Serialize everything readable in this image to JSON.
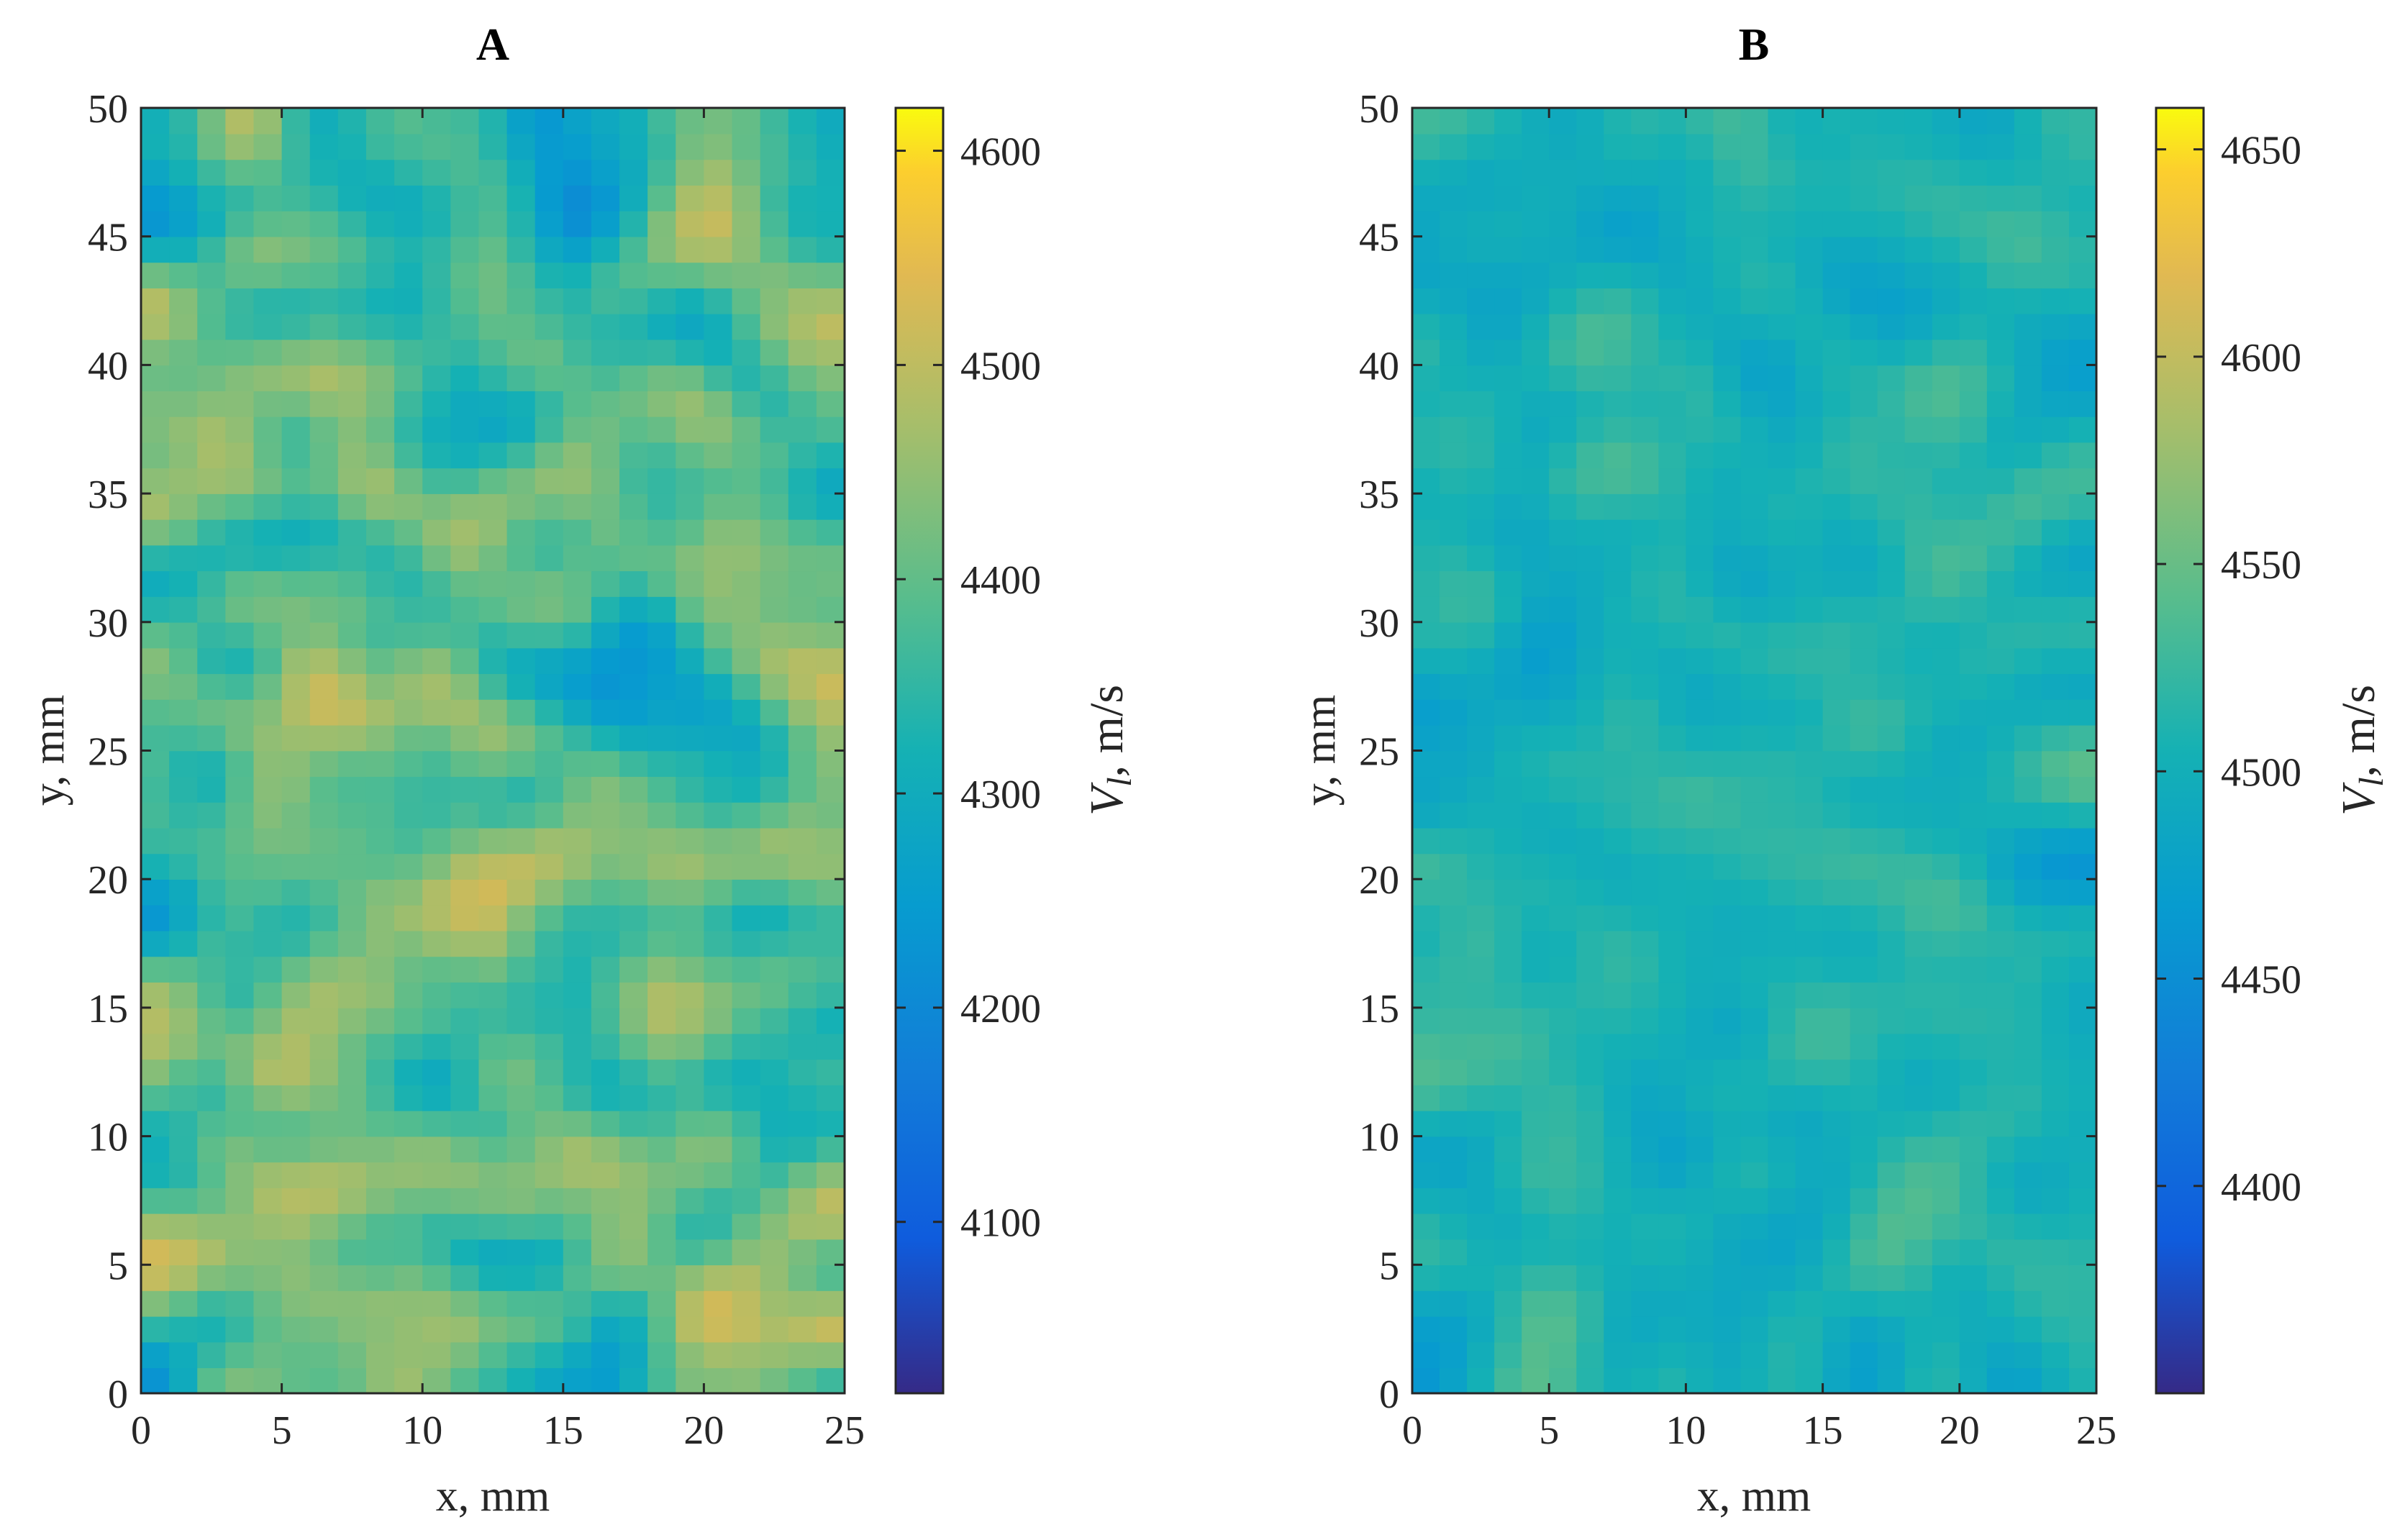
{
  "chart_data": [
    {
      "type": "heatmap",
      "title": "A",
      "xlabel": "x, mm",
      "ylabel": "y, mm",
      "xlim": [
        0,
        25
      ],
      "ylim": [
        0,
        50
      ],
      "xticks": [
        "0",
        "5",
        "10",
        "15",
        "20",
        "25"
      ],
      "yticks": [
        "0",
        "5",
        "10",
        "15",
        "20",
        "25",
        "30",
        "35",
        "40",
        "45",
        "50"
      ],
      "colorbar": {
        "label_main": "V",
        "label_sub": "l",
        "label_unit": ", m/s",
        "min": 4020,
        "max": 4620,
        "ticks": [
          "4100",
          "4200",
          "4300",
          "4400",
          "4500",
          "4600"
        ],
        "colormap": "parula"
      },
      "field": {
        "mean": 4380,
        "amplitude": 170,
        "grid": [
          25,
          50
        ],
        "seed": 7,
        "distribution": "random spatial variation"
      }
    },
    {
      "type": "heatmap",
      "title": "B",
      "xlabel": "x, mm",
      "ylabel": "y, mm",
      "xlim": [
        0,
        25
      ],
      "ylim": [
        0,
        50
      ],
      "xticks": [
        "0",
        "5",
        "10",
        "15",
        "20",
        "25"
      ],
      "yticks": [
        "0",
        "5",
        "10",
        "15",
        "20",
        "25",
        "30",
        "35",
        "40",
        "45",
        "50"
      ],
      "colorbar": {
        "label_main": "V",
        "label_sub": "l",
        "label_unit": ", m/s",
        "min": 4350,
        "max": 4660,
        "ticks": [
          "4400",
          "4450",
          "4500",
          "4550",
          "4600",
          "4650"
        ],
        "colormap": "parula"
      },
      "field": {
        "mean": 4505,
        "amplitude": 45,
        "grid": [
          25,
          50
        ],
        "seed": 19,
        "distribution": "random spatial variation"
      }
    }
  ]
}
